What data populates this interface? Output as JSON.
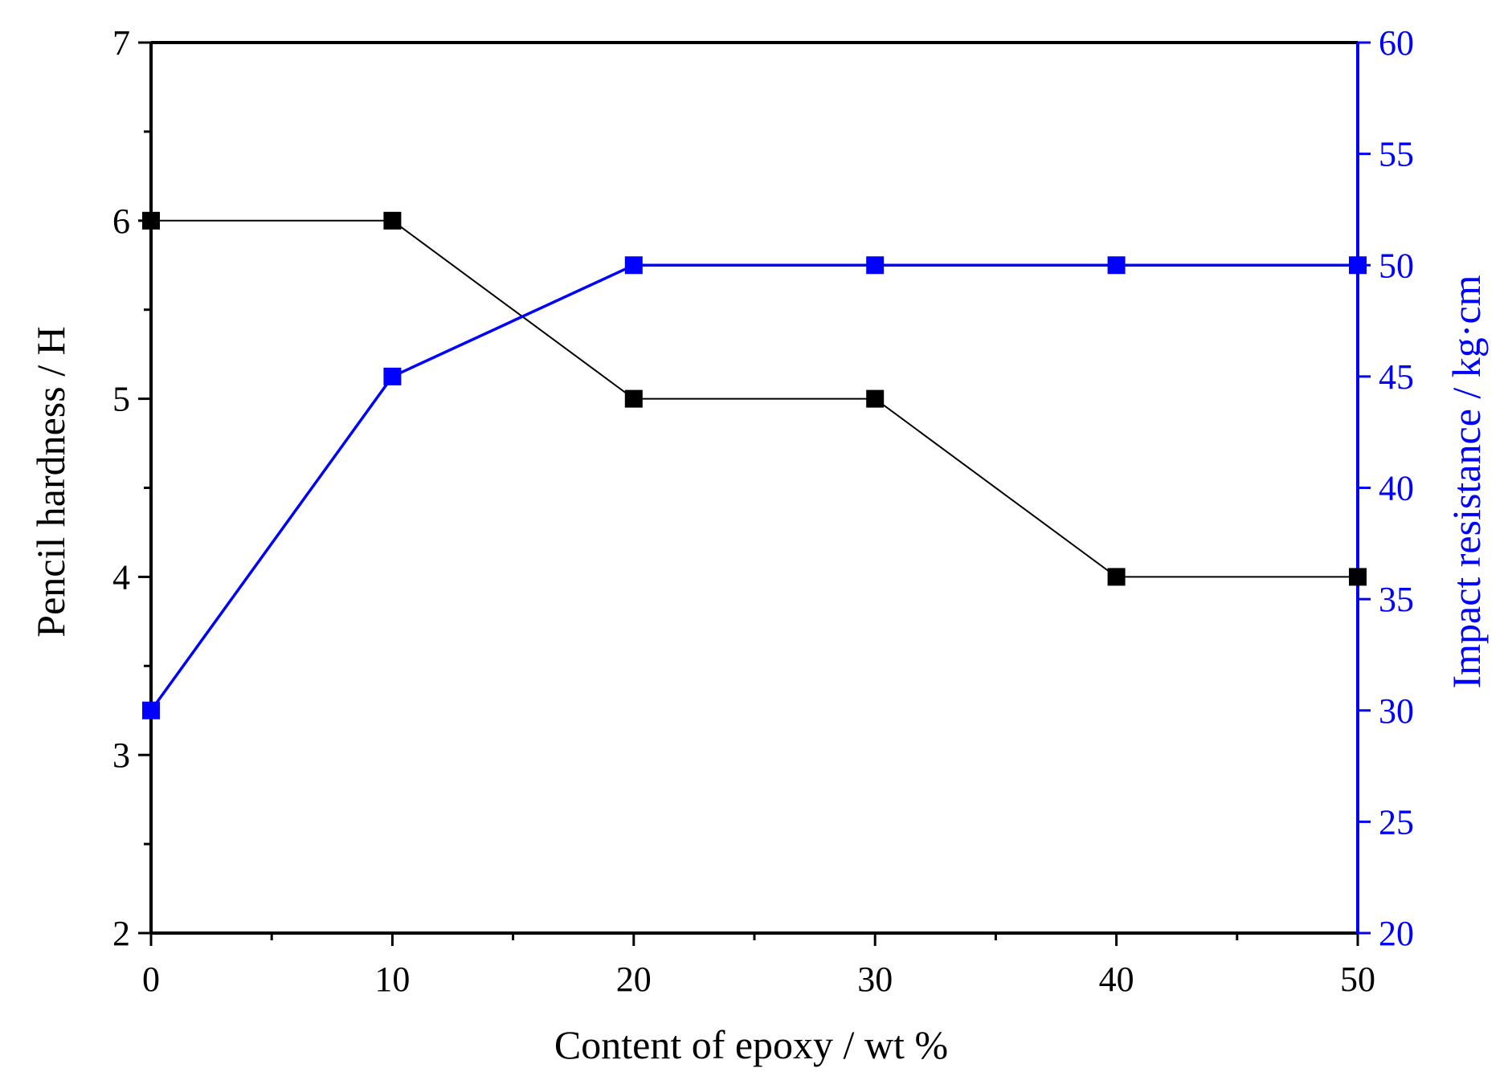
{
  "chart_data": {
    "type": "line",
    "x": [
      0,
      10,
      20,
      30,
      40,
      50
    ],
    "xlabel": "Content of epoxy  / wt %",
    "xlim": [
      0,
      50
    ],
    "x_ticks": [
      "0",
      "10",
      "20",
      "30",
      "40",
      "50"
    ],
    "y_left": {
      "label": "Pencil hardness  / H",
      "lim": [
        2,
        7
      ],
      "ticks": [
        "2",
        "3",
        "4",
        "5",
        "6",
        "7"
      ],
      "color": "#000000"
    },
    "y_right": {
      "label": "Impact resistance / kg·cm",
      "lim": [
        20,
        60
      ],
      "ticks": [
        "20",
        "25",
        "30",
        "35",
        "40",
        "45",
        "50",
        "55",
        "60"
      ],
      "color": "#0000ff"
    },
    "series": [
      {
        "axis": "left",
        "color": "#000000",
        "marker": "square",
        "values": [
          6,
          6,
          5,
          5,
          4,
          4
        ]
      },
      {
        "axis": "right",
        "color": "#0000ff",
        "marker": "square",
        "values": [
          30,
          45,
          50,
          50,
          50,
          50
        ]
      }
    ],
    "grid": false,
    "legend": "none"
  }
}
